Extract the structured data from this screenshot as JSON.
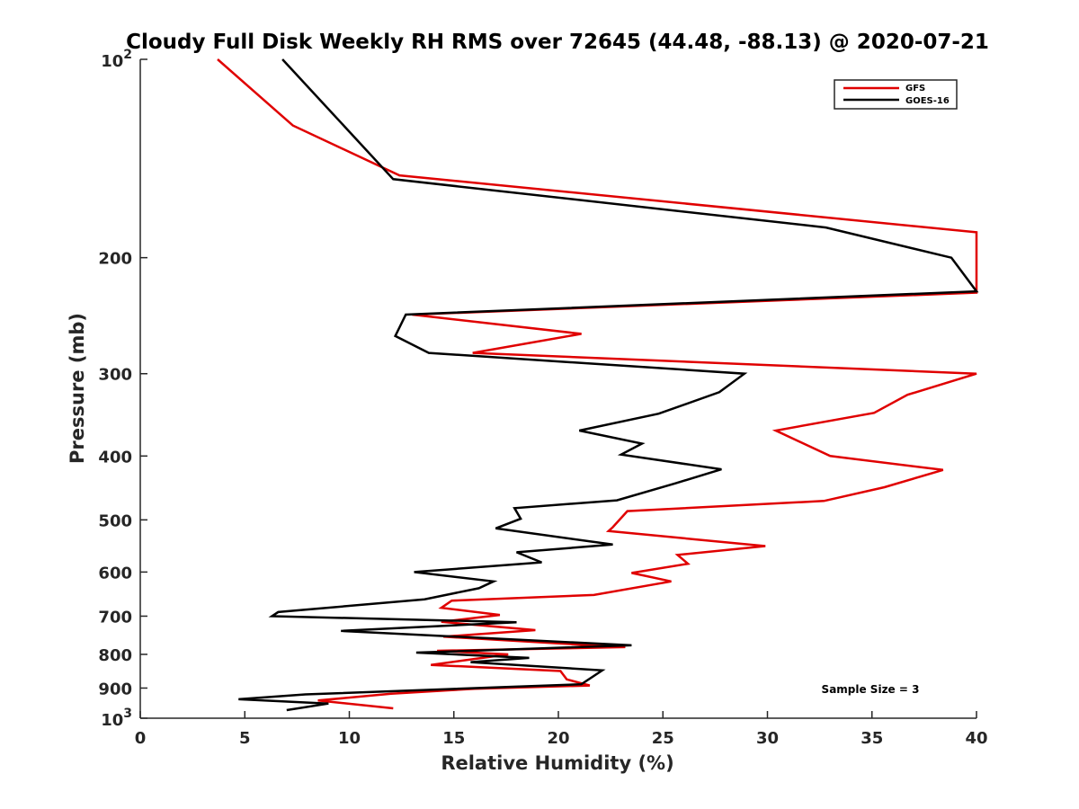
{
  "chart_data": {
    "type": "line",
    "title": "Cloudy Full Disk Weekly RH RMS over 72645 (44.48, -88.13) @ 2020-07-21",
    "xlabel": "Relative Humidity (%)",
    "ylabel": "Pressure (mb)",
    "xlim": [
      0,
      40
    ],
    "ylim": [
      100,
      1000
    ],
    "y_scale": "log",
    "y_reversed": true,
    "x_ticks": [
      "0",
      "5",
      "10",
      "15",
      "20",
      "25",
      "30",
      "35",
      "40"
    ],
    "y_ticks": [
      {
        "value": 100,
        "base": "10",
        "exp": "2"
      },
      {
        "value": 200,
        "label": "200"
      },
      {
        "value": 300,
        "label": "300"
      },
      {
        "value": 400,
        "label": "400"
      },
      {
        "value": 500,
        "label": "500"
      },
      {
        "value": 600,
        "label": "600"
      },
      {
        "value": 700,
        "label": "700"
      },
      {
        "value": 800,
        "label": "800"
      },
      {
        "value": 900,
        "label": "900"
      },
      {
        "value": 1000,
        "base": "10",
        "exp": "3"
      }
    ],
    "legend_position": "top-right",
    "grid": false,
    "annotation": "Sample Size = 3",
    "series": [
      {
        "name": "GFS",
        "color": "#e00000",
        "points": [
          [
            3.7,
            100
          ],
          [
            7.3,
            126
          ],
          [
            12.4,
            150
          ],
          [
            40.0,
            183
          ],
          [
            40.0,
            226
          ],
          [
            13.0,
            244
          ],
          [
            21.1,
            261
          ],
          [
            15.9,
            279
          ],
          [
            40.0,
            300
          ],
          [
            36.7,
            323
          ],
          [
            35.1,
            344
          ],
          [
            30.4,
            366
          ],
          [
            31.5,
            380
          ],
          [
            33.0,
            400
          ],
          [
            38.4,
            420
          ],
          [
            35.6,
            446
          ],
          [
            32.7,
            468
          ],
          [
            23.3,
            485
          ],
          [
            22.6,
            513
          ],
          [
            22.4,
            520
          ],
          [
            29.9,
            548
          ],
          [
            25.7,
            565
          ],
          [
            26.2,
            583
          ],
          [
            23.5,
            602
          ],
          [
            25.4,
            620
          ],
          [
            21.7,
            650
          ],
          [
            14.9,
            663
          ],
          [
            14.4,
            680
          ],
          [
            17.2,
            697
          ],
          [
            14.4,
            714
          ],
          [
            18.9,
            735
          ],
          [
            14.5,
            752
          ],
          [
            20.0,
            770
          ],
          [
            23.2,
            780
          ],
          [
            14.2,
            790
          ],
          [
            17.6,
            800
          ],
          [
            13.9,
            830
          ],
          [
            20.1,
            848
          ],
          [
            20.4,
            873
          ],
          [
            21.5,
            892
          ],
          [
            16.0,
            902
          ],
          [
            12.0,
            918
          ],
          [
            8.5,
            940
          ],
          [
            12.1,
            966
          ]
        ]
      },
      {
        "name": "GOES-16",
        "color": "#000000",
        "points": [
          [
            6.8,
            100
          ],
          [
            12.1,
            152
          ],
          [
            32.8,
            180
          ],
          [
            38.8,
            200
          ],
          [
            40.0,
            225
          ],
          [
            12.7,
            244
          ],
          [
            12.2,
            263
          ],
          [
            13.8,
            279
          ],
          [
            28.9,
            300
          ],
          [
            27.7,
            320
          ],
          [
            24.8,
            345
          ],
          [
            21.0,
            366
          ],
          [
            24.0,
            383
          ],
          [
            23.0,
            398
          ],
          [
            27.8,
            419
          ],
          [
            25.6,
            440
          ],
          [
            22.8,
            467
          ],
          [
            17.9,
            480
          ],
          [
            18.2,
            498
          ],
          [
            17.0,
            515
          ],
          [
            22.6,
            545
          ],
          [
            18.0,
            560
          ],
          [
            19.2,
            580
          ],
          [
            13.1,
            600
          ],
          [
            16.9,
            620
          ],
          [
            16.2,
            635
          ],
          [
            13.6,
            660
          ],
          [
            6.6,
            690
          ],
          [
            6.3,
            700
          ],
          [
            18.0,
            715
          ],
          [
            9.6,
            737
          ],
          [
            23.5,
            775
          ],
          [
            13.2,
            795
          ],
          [
            18.6,
            810
          ],
          [
            15.8,
            822
          ],
          [
            22.1,
            846
          ],
          [
            21.1,
            888
          ],
          [
            7.9,
            920
          ],
          [
            4.7,
            936
          ],
          [
            9.0,
            950
          ],
          [
            7.0,
            972
          ]
        ]
      }
    ]
  }
}
